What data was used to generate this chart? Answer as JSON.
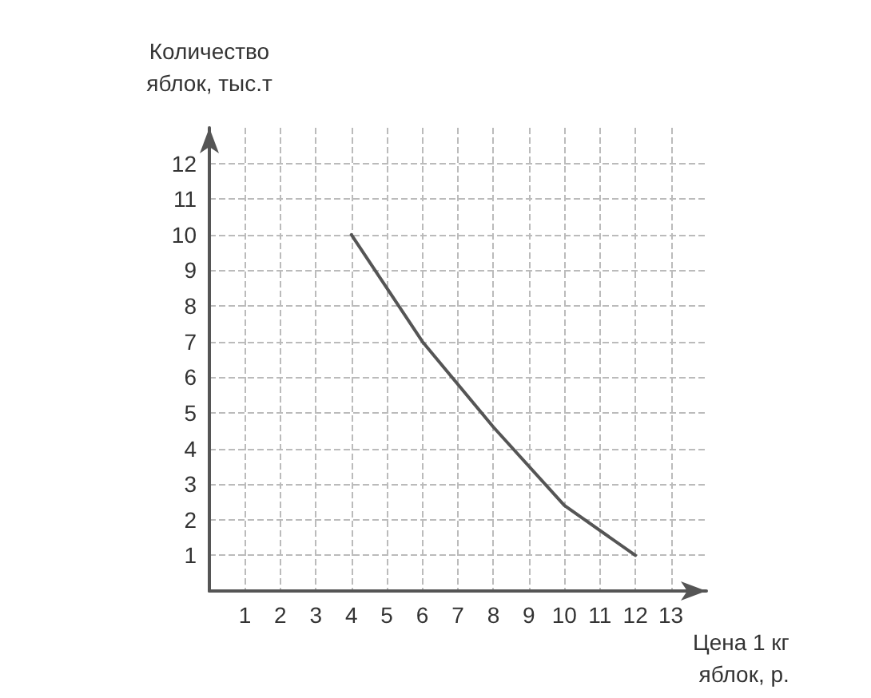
{
  "chart_data": {
    "type": "line",
    "xlabel": "Цена 1 кг яблок, р.",
    "ylabel": "Количество яблок, тыс.т",
    "x": [
      4,
      6,
      8,
      10,
      12
    ],
    "series": [
      {
        "color": "#555555",
        "values": [
          10,
          7,
          4.6,
          2.4,
          1
        ]
      }
    ],
    "xlim": [
      0,
      14
    ],
    "xticks": [
      1,
      2,
      3,
      4,
      5,
      6,
      7,
      8,
      9,
      10,
      11,
      12,
      13
    ],
    "ylim": [
      0,
      13
    ],
    "yticks": [
      1,
      2,
      3,
      4,
      5,
      6,
      7,
      8,
      9,
      10,
      11,
      12
    ],
    "grid": true,
    "marker": "none",
    "line_style": "solid"
  }
}
